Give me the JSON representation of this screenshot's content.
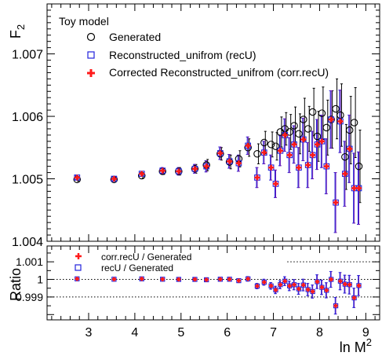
{
  "chart_data": [
    {
      "type": "scatter",
      "panel": "main",
      "ylabel": "F",
      "ylabel_sub": "2",
      "xlim": [
        2.1,
        9.3
      ],
      "ylim": [
        1.004,
        1.0078
      ],
      "yticks": [
        "1.004",
        "1.005",
        "1.006",
        "1.007"
      ],
      "legend_position": "top-left",
      "legend_title": "Toy model",
      "x": [
        2.75,
        3.55,
        4.15,
        4.6,
        4.95,
        5.3,
        5.55,
        5.85,
        6.05,
        6.25,
        6.45,
        6.65,
        6.8,
        6.95,
        7.05,
        7.15,
        7.25,
        7.35,
        7.45,
        7.55,
        7.65,
        7.75,
        7.85,
        7.95,
        8.05,
        8.15,
        8.25,
        8.35,
        8.45,
        8.55,
        8.65,
        8.75,
        8.85
      ],
      "series": [
        {
          "name": "Generated",
          "marker": "open-circle",
          "color": "#000000",
          "values": [
            1.00499,
            1.00499,
            1.00505,
            1.00512,
            1.00512,
            1.00516,
            1.00522,
            1.0054,
            1.00527,
            1.00532,
            1.0055,
            1.0054,
            1.00558,
            1.00555,
            1.00552,
            1.00575,
            1.0058,
            1.00575,
            1.00585,
            1.00572,
            1.00595,
            1.0058,
            1.00607,
            1.00568,
            1.00605,
            1.00582,
            1.00595,
            1.00612,
            1.00602,
            1.00535,
            1.00578,
            1.0059,
            1.0052
          ]
        },
        {
          "name": "Reconstructed_unifrom (recU)",
          "marker": "open-square",
          "color": "#2222dd",
          "values": [
            1.00502,
            1.005,
            1.00508,
            1.00513,
            1.00512,
            1.00516,
            1.0052,
            1.00541,
            1.00528,
            1.00525,
            1.00553,
            1.00502,
            1.00542,
            1.00518,
            1.00492,
            1.00545,
            1.0057,
            1.00538,
            1.00555,
            1.00518,
            1.00563,
            1.00522,
            1.00538,
            1.00555,
            1.0056,
            1.0052,
            1.00595,
            1.00462,
            1.00592,
            1.00508,
            1.00548,
            1.00485,
            1.00485
          ]
        },
        {
          "name": "Corrected Reconstructed_unifrom (corr.recU)",
          "marker": "cross",
          "color": "#ff1a1a",
          "values": [
            1.00502,
            1.005,
            1.00508,
            1.00513,
            1.00512,
            1.00516,
            1.0052,
            1.00541,
            1.00528,
            1.00525,
            1.00553,
            1.00502,
            1.00542,
            1.00518,
            1.00492,
            1.00545,
            1.0057,
            1.00538,
            1.00555,
            1.00518,
            1.00563,
            1.00522,
            1.00538,
            1.00555,
            1.0056,
            1.0052,
            1.00595,
            1.00462,
            1.00592,
            1.00508,
            1.00548,
            1.00485,
            1.00485
          ]
        }
      ],
      "errors": [
        3e-05,
        3e-05,
        4e-05,
        5e-05,
        6e-05,
        7e-05,
        9e-05,
        0.0001,
        0.00011,
        0.00013,
        0.00014,
        0.00016,
        0.00018,
        0.0002,
        0.00022,
        0.00024,
        0.00026,
        0.00028,
        0.0003,
        0.00032,
        0.00034,
        0.00036,
        0.00038,
        0.0004,
        0.00042,
        0.00044,
        0.00046,
        0.00048,
        0.0005,
        0.00052,
        0.00054,
        0.00056,
        0.00058
      ]
    },
    {
      "type": "scatter",
      "panel": "ratio",
      "ylabel": "Ratio",
      "xlabel": "ln M",
      "xlabel_sup": "2",
      "xlim": [
        2.1,
        9.3
      ],
      "ylim": [
        0.9977,
        1.0019
      ],
      "xticks": [
        "3",
        "4",
        "5",
        "6",
        "7",
        "8",
        "9"
      ],
      "yticks": [
        "0.999",
        "1",
        "1.001"
      ],
      "reference_lines": [
        0.999,
        1,
        1.001
      ],
      "legend_position": "top-left",
      "x": [
        2.75,
        3.55,
        4.15,
        4.6,
        4.95,
        5.3,
        5.55,
        5.85,
        6.05,
        6.25,
        6.45,
        6.65,
        6.8,
        6.95,
        7.05,
        7.15,
        7.25,
        7.35,
        7.45,
        7.55,
        7.65,
        7.75,
        7.85,
        7.95,
        8.05,
        8.15,
        8.25,
        8.35,
        8.45,
        8.55,
        8.65,
        8.75,
        8.85
      ],
      "series": [
        {
          "name": "corr.recU / Generated",
          "marker": "cross",
          "color": "#ff1a1a",
          "values": [
            1.00003,
            1.00001,
            1.00003,
            1.00001,
            1.0,
            1.0,
            0.99998,
            1.00001,
            1.00001,
            0.99993,
            1.00003,
            0.99962,
            0.99984,
            0.99963,
            0.9994,
            0.9997,
            0.9999,
            0.99963,
            0.9997,
            0.99946,
            0.99968,
            0.99942,
            0.99931,
            0.99987,
            0.99955,
            0.99938,
            1.0,
            0.9985,
            0.9999,
            0.99973,
            0.9997,
            0.99895,
            0.99965
          ]
        },
        {
          "name": "recU / Generated",
          "marker": "open-square",
          "color": "#2222dd",
          "values": [
            1.00003,
            1.00001,
            1.00003,
            1.00001,
            1.0,
            1.0,
            0.99998,
            1.00001,
            1.00001,
            0.99993,
            1.00003,
            0.99962,
            0.99984,
            0.99963,
            0.9994,
            0.9997,
            0.9999,
            0.99963,
            0.9997,
            0.99946,
            0.99968,
            0.99942,
            0.99931,
            0.99987,
            0.99955,
            0.99938,
            1.0,
            0.9985,
            0.9999,
            0.99973,
            0.9997,
            0.99895,
            0.99965
          ]
        }
      ],
      "errors": [
        2e-05,
        3e-05,
        4e-05,
        5e-05,
        6e-05,
        7e-05,
        8e-05,
        9e-05,
        0.0001,
        0.00011,
        0.00013,
        0.00015,
        0.00017,
        0.00019,
        0.00021,
        0.00023,
        0.00025,
        0.00027,
        0.00029,
        0.00031,
        0.00033,
        0.00035,
        0.00037,
        0.00039,
        0.00041,
        0.00043,
        0.00045,
        0.00047,
        0.00049,
        0.00051,
        0.00053,
        0.00055,
        0.00057
      ]
    }
  ]
}
